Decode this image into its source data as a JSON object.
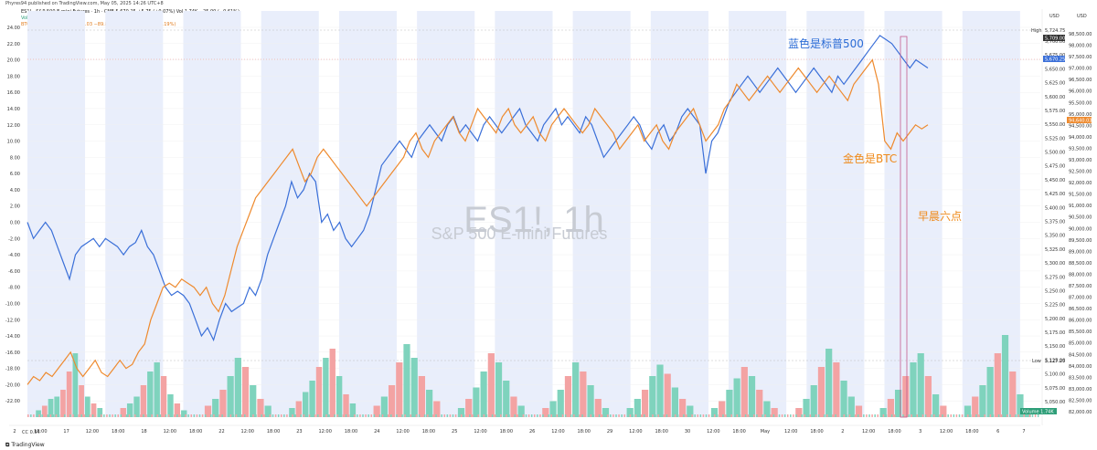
{
  "publisher_line": "Phyres94 published on TradingView.com, May 05, 2025 14:26 UTC+8",
  "legend": {
    "line1": "ES1! · S&P 500 E-mini Futures · 1h · CME  5,670.25  +5.75 (+0.07%)  Vol 1.74K  −25.00 (−0.61%)",
    "line2": "Vol  1.74K",
    "line3": "BTCUSD · COINBASE  94,640.03  −89.81 (−0.09%)  +67.48 (+0.19%)"
  },
  "watermark": {
    "symbol": "ES1!, 1h",
    "name": "S&P 500 E-mini Futures"
  },
  "annotations": {
    "blue_label": "蓝色是标普500",
    "gold_label": "金色是BTC",
    "six_am_label": "早晨六点"
  },
  "cc_label": "CC  0.54",
  "brand_label": "TradingView",
  "colors": {
    "es_line": "#3a6fd8",
    "btc_line": "#ee8a2e",
    "vol_up": "#7fd3bd",
    "vol_down": "#f3a3a3",
    "blue_text": "#2b6cd6",
    "gold_text": "#ef8a1a",
    "session_band": "#e9eefb"
  },
  "chart_data": {
    "type": "line",
    "time_axis": [
      "2",
      "18:00",
      "17",
      "12:00",
      "18:00",
      "18",
      "12:00",
      "18:00",
      "22",
      "12:00",
      "18:00",
      "23",
      "12:00",
      "18:00",
      "24",
      "12:00",
      "18:00",
      "25",
      "12:00",
      "18:00",
      "26",
      "12:00",
      "18:00",
      "29",
      "12:00",
      "18:00",
      "30",
      "12:00",
      "18:00",
      "May",
      "12:00",
      "18:00",
      "2",
      "12:00",
      "18:00",
      "3",
      "12:00",
      "18:00",
      "6",
      "7"
    ],
    "left_axis_ticks": [
      "24.00",
      "22.00",
      "20.00",
      "18.00",
      "16.00",
      "14.00",
      "12.00",
      "10.00",
      "8.00",
      "6.00",
      "4.00",
      "2.00",
      "0.00",
      "-2.00",
      "-4.00",
      "-6.00",
      "-8.00",
      "-10.00",
      "-12.00",
      "-14.00",
      "-16.00",
      "-18.00",
      "-20.00",
      "-22.00"
    ],
    "left_axis_range": [
      -24,
      24
    ],
    "right_axis_es_ticks": [
      "5,700.00",
      "5,675.00",
      "5,650.00",
      "5,625.00",
      "5,600.00",
      "5,575.00",
      "5,550.00",
      "5,525.00",
      "5,500.00",
      "5,475.00",
      "5,450.00",
      "5,425.00",
      "5,400.00",
      "5,375.00",
      "5,350.00",
      "5,325.00",
      "5,300.00",
      "5,275.00",
      "5,250.00",
      "5,225.00",
      "5,200.00",
      "5,175.00",
      "5,150.00",
      "5,125.00",
      "5,100.00",
      "5,075.00",
      "5,050.00"
    ],
    "right_axis_btc_ticks": [
      "98,500.00",
      "98,000.00",
      "97,500.00",
      "97,000.00",
      "96,500.00",
      "96,000.00",
      "95,500.00",
      "95,000.00",
      "94,500.00",
      "94,000.00",
      "93,500.00",
      "93,000.00",
      "92,500.00",
      "92,000.00",
      "91,500.00",
      "91,000.00",
      "90,500.00",
      "90,000.00",
      "89,500.00",
      "89,000.00",
      "88,500.00",
      "88,000.00",
      "87,500.00",
      "87,000.00",
      "86,500.00",
      "86,000.00",
      "85,500.00",
      "85,000.00",
      "84,500.00",
      "84,000.00",
      "83,500.00",
      "83,000.00",
      "82,500.00",
      "82,000.00"
    ],
    "right_axis_currency": "USD",
    "high_label": "High",
    "high_value": "5,724.75",
    "low_label": "Low",
    "low_value": "5,127.25",
    "last_es": "5,670.25",
    "last_es_sub": "5,709.00",
    "last_btc": "94,640.03",
    "volume_label": "Volume",
    "volume_value": "1.74K",
    "series": [
      {
        "name": "ES1!",
        "values": [
          0,
          -2,
          -1,
          0,
          -1,
          -3,
          -5,
          -7,
          -4,
          -3,
          -2.5,
          -2,
          -3,
          -2,
          -2.5,
          -3,
          -4,
          -3,
          -2.5,
          -1,
          -3,
          -4,
          -6,
          -8,
          -9,
          -8.5,
          -9,
          -10,
          -12,
          -14,
          -13,
          -14.5,
          -12,
          -10,
          -11,
          -10.5,
          -10,
          -8,
          -9,
          -7,
          -4,
          -2,
          0,
          2,
          5,
          3,
          4,
          6,
          5,
          0,
          1,
          -1,
          0,
          -2,
          -3,
          -2,
          -1,
          1,
          4,
          7,
          8,
          9,
          10,
          9,
          8,
          10,
          11,
          12,
          11,
          10,
          12,
          13,
          11,
          12,
          11,
          10,
          12,
          13,
          12,
          11,
          12,
          13,
          14,
          12,
          11,
          10,
          12,
          13,
          14,
          12,
          13,
          12,
          11,
          13,
          12,
          10,
          8,
          9,
          10,
          11,
          12,
          13,
          12,
          10,
          9,
          11,
          12,
          10,
          11,
          13,
          14,
          13,
          12,
          6,
          10,
          11,
          13,
          15,
          16,
          17,
          18,
          17,
          16,
          17,
          18,
          19,
          18,
          17,
          16,
          17,
          18,
          19,
          18,
          17,
          16,
          18,
          17,
          18,
          19,
          20,
          21,
          22,
          23,
          22.5,
          22,
          21,
          20,
          19,
          20,
          19.5,
          19
        ],
        "color_key": "es_line"
      },
      {
        "name": "BTCUSD",
        "values": [
          -20,
          -19,
          -19.5,
          -18.5,
          -19,
          -18,
          -17,
          -16,
          -18,
          -19,
          -18,
          -17,
          -18.5,
          -19,
          -18,
          -17,
          -18,
          -17.5,
          -16,
          -15,
          -12,
          -10,
          -8,
          -7.5,
          -8,
          -7,
          -7.5,
          -8,
          -9,
          -8,
          -10,
          -11,
          -9,
          -6,
          -3,
          -1,
          1,
          3,
          4,
          5,
          6,
          7,
          8,
          9,
          7,
          5,
          6,
          8,
          9,
          8,
          7,
          6,
          5,
          4,
          3,
          2,
          3,
          4,
          5,
          6,
          7,
          8,
          10,
          11,
          9,
          8,
          10,
          11,
          12,
          13,
          11,
          10,
          12,
          14,
          13,
          12,
          11,
          13,
          14,
          12,
          11,
          12,
          13,
          11,
          10,
          12,
          13,
          14,
          13,
          12,
          11,
          12,
          14,
          13,
          12,
          11,
          9,
          10,
          11,
          12,
          10,
          11,
          12,
          10,
          9,
          11,
          12,
          13,
          14,
          12,
          10,
          11,
          12,
          14,
          15,
          17,
          16,
          15,
          16,
          17,
          18,
          17,
          16,
          17,
          18,
          19,
          18,
          17,
          16,
          17,
          18,
          17,
          16,
          15,
          17,
          18,
          19,
          20,
          17,
          10,
          9,
          11,
          10,
          11,
          12,
          11.5,
          12
        ],
        "color_key": "btc_line"
      }
    ],
    "volume": {
      "description_pattern": "daily session volume clusters",
      "clusters": [
        {
          "session": 1,
          "values": [
            3,
            5,
            8,
            9,
            12,
            20,
            28,
            14,
            9,
            6,
            4
          ],
          "up": [
            1,
            0,
            1,
            1,
            0,
            0,
            1,
            0,
            1,
            0,
            1
          ]
        },
        {
          "session": 2,
          "values": [
            4,
            6,
            9,
            14,
            20,
            24,
            18,
            10,
            6,
            3
          ],
          "up": [
            0,
            1,
            1,
            0,
            1,
            1,
            0,
            1,
            0,
            1
          ]
        },
        {
          "session": 3,
          "values": [
            5,
            8,
            12,
            18,
            26,
            22,
            14,
            8,
            5
          ],
          "up": [
            0,
            1,
            0,
            1,
            1,
            0,
            1,
            0,
            1
          ]
        },
        {
          "session": 4,
          "values": [
            4,
            7,
            11,
            16,
            22,
            26,
            30,
            18,
            10,
            6
          ],
          "up": [
            1,
            0,
            1,
            1,
            0,
            1,
            0,
            1,
            0,
            1
          ]
        },
        {
          "session": 5,
          "values": [
            5,
            9,
            14,
            24,
            32,
            26,
            18,
            12,
            7
          ],
          "up": [
            0,
            1,
            0,
            0,
            1,
            1,
            0,
            1,
            0
          ]
        },
        {
          "session": 6,
          "values": [
            4,
            8,
            13,
            20,
            28,
            24,
            16,
            9,
            5
          ],
          "up": [
            1,
            0,
            1,
            1,
            0,
            1,
            1,
            0,
            1
          ]
        },
        {
          "session": 7,
          "values": [
            4,
            7,
            12,
            18,
            24,
            20,
            14,
            8,
            4
          ],
          "up": [
            0,
            1,
            1,
            0,
            1,
            0,
            1,
            0,
            1
          ]
        },
        {
          "session": 8,
          "values": [
            4,
            8,
            12,
            18,
            23,
            19,
            13,
            8,
            5
          ],
          "up": [
            1,
            1,
            0,
            1,
            1,
            0,
            1,
            0,
            1
          ]
        },
        {
          "session": 9,
          "values": [
            4,
            7,
            12,
            17,
            22,
            18,
            12,
            7,
            4
          ],
          "up": [
            1,
            0,
            1,
            1,
            0,
            1,
            0,
            1,
            0
          ]
        },
        {
          "session": 10,
          "values": [
            4,
            8,
            14,
            22,
            30,
            24,
            16,
            9,
            5
          ],
          "up": [
            0,
            1,
            1,
            0,
            1,
            0,
            1,
            1,
            0
          ]
        },
        {
          "session": 11,
          "values": [
            4,
            8,
            12,
            18,
            24,
            28,
            18,
            10,
            5
          ],
          "up": [
            1,
            0,
            1,
            0,
            1,
            1,
            0,
            1,
            0
          ]
        },
        {
          "session": 12,
          "values": [
            5,
            9,
            14,
            22,
            28,
            36,
            20,
            10,
            4
          ],
          "up": [
            1,
            0,
            1,
            1,
            0,
            1,
            0,
            1,
            1
          ]
        }
      ]
    },
    "grid": true,
    "legend_placement": "top-left"
  }
}
